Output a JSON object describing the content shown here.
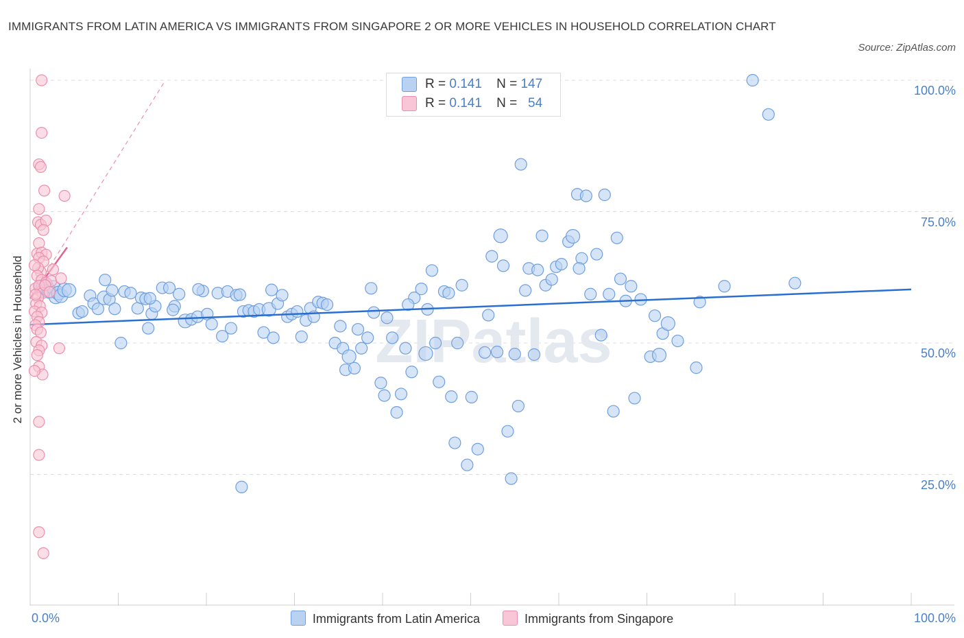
{
  "title": "IMMIGRANTS FROM LATIN AMERICA VS IMMIGRANTS FROM SINGAPORE 2 OR MORE VEHICLES IN HOUSEHOLD CORRELATION CHART",
  "source": "Source: ZipAtlas.com",
  "watermark": "ZIPatlas",
  "legend_top": [
    {
      "r_label": "R =",
      "r_value": "0.141",
      "n_label": "N =",
      "n_value": "147"
    },
    {
      "r_label": "R =",
      "r_value": "0.141",
      "n_label": "N =",
      "n_value": "54"
    }
  ],
  "legend_bottom": [
    "Immigrants from Latin America",
    "Immigrants from Singapore"
  ],
  "axes": {
    "ylabel": "2 or more Vehicles in Household",
    "yticks": [
      "100.0%",
      "75.0%",
      "50.0%",
      "25.0%"
    ],
    "xticks": [
      "0.0%",
      "100.0%"
    ]
  },
  "colors": {
    "blue_fill": "#b9d2f2",
    "blue_stroke": "#6f9fde",
    "blue_line": "#2a6fd0",
    "pink_fill": "#f8c6d6",
    "pink_stroke": "#eb8fae",
    "pink_line": "#e0658f",
    "grid": "#dddddd",
    "accent_text": "#4a7fc9"
  },
  "chart_data": {
    "type": "scatter",
    "xlim": [
      0,
      100
    ],
    "ylim": [
      0,
      100
    ],
    "series": [
      {
        "name": "Immigrants from Latin America",
        "r": 0.141,
        "n": 147,
        "trend": {
          "x": [
            0,
            100
          ],
          "y": [
            53.5,
            60.2
          ]
        },
        "points": [
          [
            1.2,
            60.5
          ],
          [
            1.3,
            60.0
          ],
          [
            1.5,
            60.8
          ],
          [
            1.8,
            61.0
          ],
          [
            2.0,
            60.3
          ],
          [
            2.2,
            59.8
          ],
          [
            2.6,
            60.6
          ],
          [
            2.9,
            58.8
          ],
          [
            3.2,
            59.5
          ],
          [
            3.5,
            59.0
          ],
          [
            3.9,
            60.1
          ],
          [
            4.4,
            60.0
          ],
          [
            5.5,
            55.7
          ],
          [
            5.9,
            56.0
          ],
          [
            6.8,
            59.0
          ],
          [
            7.2,
            57.5
          ],
          [
            7.7,
            56.5
          ],
          [
            8.4,
            58.6
          ],
          [
            9.0,
            58.3
          ],
          [
            9.6,
            56.5
          ],
          [
            9.3,
            60.0
          ],
          [
            10.3,
            50.0
          ],
          [
            10.7,
            59.8
          ],
          [
            11.4,
            59.5
          ],
          [
            12.2,
            56.6
          ],
          [
            12.6,
            58.6
          ],
          [
            13.1,
            58.4
          ],
          [
            13.4,
            52.8
          ],
          [
            13.8,
            55.6
          ],
          [
            14.2,
            57.0
          ],
          [
            15.0,
            60.5
          ],
          [
            15.8,
            60.5
          ],
          [
            16.4,
            57.0
          ],
          [
            16.9,
            59.3
          ],
          [
            17.6,
            54.2
          ],
          [
            18.3,
            54.5
          ],
          [
            19.0,
            55.0
          ],
          [
            19.6,
            59.9
          ],
          [
            20.1,
            55.5
          ],
          [
            20.6,
            53.6
          ],
          [
            21.3,
            59.5
          ],
          [
            21.8,
            51.3
          ],
          [
            22.4,
            59.8
          ],
          [
            22.8,
            52.8
          ],
          [
            23.4,
            59.1
          ],
          [
            23.8,
            59.2
          ],
          [
            24.2,
            56.0
          ],
          [
            24.8,
            56.2
          ],
          [
            25.4,
            56.0
          ],
          [
            26.0,
            56.4
          ],
          [
            26.5,
            52.0
          ],
          [
            27.1,
            56.4
          ],
          [
            27.6,
            51.0
          ],
          [
            28.1,
            57.5
          ],
          [
            28.6,
            59.1
          ],
          [
            29.2,
            55.0
          ],
          [
            29.7,
            55.5
          ],
          [
            30.3,
            56.0
          ],
          [
            30.8,
            51.2
          ],
          [
            31.3,
            54.3
          ],
          [
            31.8,
            56.6
          ],
          [
            32.2,
            55.0
          ],
          [
            32.7,
            57.8
          ],
          [
            33.2,
            57.6
          ],
          [
            33.7,
            57.3
          ],
          [
            34.6,
            50.0
          ],
          [
            35.5,
            49.0
          ],
          [
            35.8,
            44.9
          ],
          [
            36.2,
            47.4
          ],
          [
            36.8,
            45.2
          ],
          [
            37.2,
            52.6
          ],
          [
            37.6,
            49.0
          ],
          [
            38.3,
            51.0
          ],
          [
            38.7,
            60.4
          ],
          [
            39.0,
            55.8
          ],
          [
            39.8,
            42.4
          ],
          [
            40.2,
            40.0
          ],
          [
            40.5,
            54.8
          ],
          [
            41.1,
            51.0
          ],
          [
            41.6,
            36.8
          ],
          [
            42.1,
            40.3
          ],
          [
            42.6,
            49.0
          ],
          [
            43.3,
            44.5
          ],
          [
            43.6,
            58.6
          ],
          [
            44.4,
            60.3
          ],
          [
            44.9,
            48.0
          ],
          [
            45.6,
            63.8
          ],
          [
            46.0,
            50.0
          ],
          [
            46.4,
            42.6
          ],
          [
            47.0,
            59.8
          ],
          [
            47.5,
            59.5
          ],
          [
            47.8,
            39.8
          ],
          [
            48.2,
            31.0
          ],
          [
            48.5,
            50.0
          ],
          [
            49.0,
            61.0
          ],
          [
            49.6,
            26.8
          ],
          [
            50.1,
            39.7
          ],
          [
            50.8,
            29.8
          ],
          [
            51.6,
            48.2
          ],
          [
            52.0,
            55.3
          ],
          [
            52.4,
            66.5
          ],
          [
            53.0,
            48.3
          ],
          [
            53.4,
            70.4
          ],
          [
            53.7,
            64.7
          ],
          [
            54.2,
            33.2
          ],
          [
            54.6,
            24.2
          ],
          [
            55.0,
            47.9
          ],
          [
            55.4,
            38.0
          ],
          [
            55.7,
            84.0
          ],
          [
            56.2,
            60.0
          ],
          [
            56.6,
            64.2
          ],
          [
            57.2,
            47.8
          ],
          [
            57.6,
            63.9
          ],
          [
            58.1,
            70.4
          ],
          [
            58.5,
            61.0
          ],
          [
            59.2,
            62.1
          ],
          [
            59.7,
            64.5
          ],
          [
            60.3,
            65.0
          ],
          [
            61.1,
            69.3
          ],
          [
            61.6,
            70.3
          ],
          [
            62.1,
            78.3
          ],
          [
            62.6,
            66.1
          ],
          [
            63.1,
            78.0
          ],
          [
            63.6,
            59.3
          ],
          [
            64.3,
            66.9
          ],
          [
            64.8,
            51.5
          ],
          [
            65.2,
            78.2
          ],
          [
            65.7,
            59.3
          ],
          [
            66.2,
            37.0
          ],
          [
            66.6,
            70.0
          ],
          [
            67.0,
            62.2
          ],
          [
            67.6,
            58.0
          ],
          [
            68.2,
            60.8
          ],
          [
            69.3,
            58.3
          ],
          [
            70.4,
            47.4
          ],
          [
            70.9,
            55.2
          ],
          [
            71.4,
            47.7
          ],
          [
            71.8,
            51.8
          ],
          [
            73.5,
            50.4
          ],
          [
            75.6,
            45.3
          ],
          [
            78.8,
            60.8
          ],
          [
            82.0,
            100.0
          ],
          [
            83.8,
            93.5
          ],
          [
            86.8,
            61.4
          ],
          [
            76.0,
            57.8
          ],
          [
            62.3,
            64.2
          ],
          [
            45.1,
            56.4
          ],
          [
            35.2,
            53.2
          ],
          [
            13.6,
            58.5
          ],
          [
            8.5,
            62.0
          ],
          [
            27.4,
            60.1
          ],
          [
            42.9,
            57.3
          ],
          [
            24.0,
            22.6
          ],
          [
            72.4,
            53.7
          ],
          [
            68.6,
            39.5
          ],
          [
            19.1,
            60.2
          ],
          [
            16.2,
            56.3
          ]
        ]
      },
      {
        "name": "Immigrants from Singapore",
        "r": 0.141,
        "n": 54,
        "trend": {
          "x": [
            0,
            4.2
          ],
          "y": [
            58.5,
            68.2
          ]
        },
        "trend_extended": {
          "x": [
            0,
            15.2
          ],
          "y": [
            58.5,
            99.6
          ]
        },
        "points": [
          [
            1.3,
            100.0
          ],
          [
            1.3,
            90.0
          ],
          [
            1.0,
            84.0
          ],
          [
            1.2,
            83.5
          ],
          [
            1.6,
            79.0
          ],
          [
            3.9,
            78.0
          ],
          [
            1.0,
            75.5
          ],
          [
            0.9,
            73.0
          ],
          [
            1.2,
            72.5
          ],
          [
            1.8,
            73.3
          ],
          [
            1.5,
            71.5
          ],
          [
            1.0,
            69.0
          ],
          [
            0.8,
            67.0
          ],
          [
            1.3,
            67.2
          ],
          [
            1.8,
            66.8
          ],
          [
            1.0,
            66.2
          ],
          [
            1.5,
            65.5
          ],
          [
            1.2,
            63.5
          ],
          [
            0.9,
            64.3
          ],
          [
            2.6,
            64.0
          ],
          [
            0.8,
            62.8
          ],
          [
            1.3,
            62.0
          ],
          [
            1.8,
            61.5
          ],
          [
            2.4,
            61.8
          ],
          [
            3.5,
            62.3
          ],
          [
            0.6,
            60.4
          ],
          [
            1.0,
            60.9
          ],
          [
            1.4,
            59.5
          ],
          [
            0.9,
            58.6
          ],
          [
            0.7,
            57.5
          ],
          [
            1.1,
            57.0
          ],
          [
            0.5,
            56.0
          ],
          [
            1.3,
            55.8
          ],
          [
            0.8,
            55.0
          ],
          [
            1.0,
            54.0
          ],
          [
            0.6,
            53.4
          ],
          [
            0.8,
            52.6
          ],
          [
            1.2,
            52.0
          ],
          [
            0.7,
            50.2
          ],
          [
            1.3,
            49.5
          ],
          [
            1.0,
            48.6
          ],
          [
            3.3,
            49.0
          ],
          [
            0.8,
            47.7
          ],
          [
            1.0,
            45.5
          ],
          [
            1.4,
            44.0
          ],
          [
            0.5,
            44.7
          ],
          [
            1.0,
            35.0
          ],
          [
            1.0,
            28.7
          ],
          [
            1.0,
            14.0
          ],
          [
            1.5,
            10.0
          ],
          [
            0.5,
            64.8
          ],
          [
            0.6,
            59.2
          ],
          [
            1.7,
            61.0
          ],
          [
            2.2,
            59.7
          ]
        ]
      }
    ]
  }
}
